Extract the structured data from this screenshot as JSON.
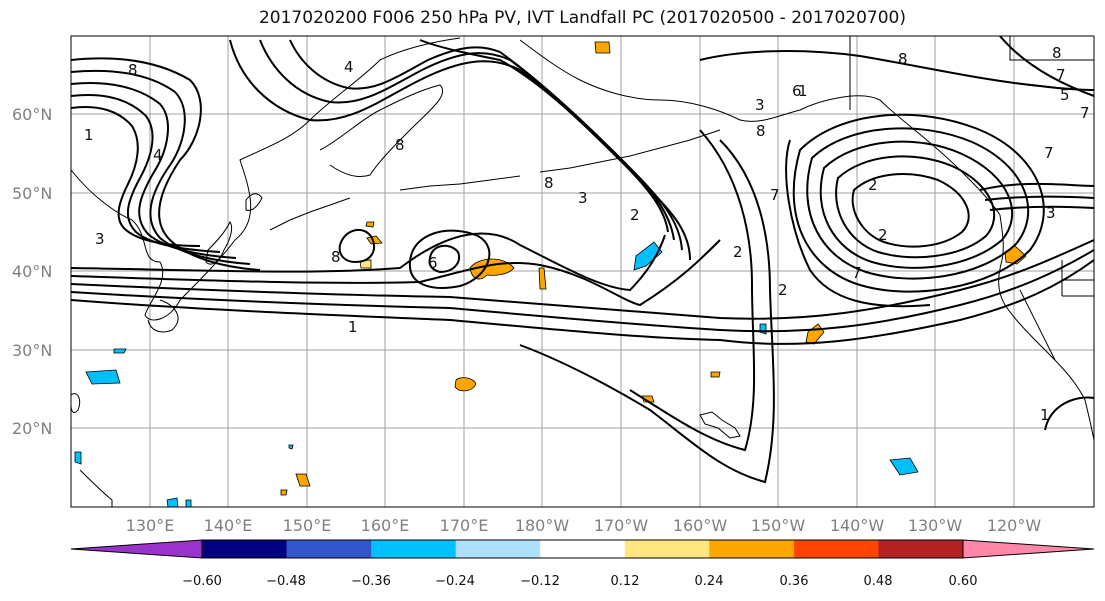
{
  "title": "2017020200 F006 250 hPa PV, IVT Landfall PC (2017020500 - 2017020700)",
  "map": {
    "lat_labels": [
      "60°N",
      "50°N",
      "40°N",
      "30°N",
      "20°N"
    ],
    "lon_labels": [
      "130°E",
      "140°E",
      "150°E",
      "160°E",
      "170°E",
      "180°W",
      "170°W",
      "160°W",
      "150°W",
      "140°W",
      "130°W",
      "120°W"
    ],
    "contour_labels": [
      "8",
      "4",
      "1",
      "4",
      "3",
      "8",
      "8",
      "8",
      "3",
      "2",
      "6",
      "1",
      "2",
      "2",
      "7",
      "8",
      "6",
      "7",
      "7",
      "7",
      "1",
      "2",
      "1",
      "3",
      "7",
      "8",
      "5",
      "8",
      "2",
      "3"
    ]
  },
  "colorbar": {
    "ticks": [
      "−0.60",
      "−0.48",
      "−0.36",
      "−0.24",
      "−0.12",
      "0.12",
      "0.24",
      "0.36",
      "0.48",
      "0.60"
    ],
    "colors": [
      "#9933cc",
      "#000080",
      "#3355cc",
      "#00bfff",
      "#b0e0ff",
      "#ffffff",
      "#ffe680",
      "#ffa500",
      "#ff4500",
      "#b22222",
      "#ff88aa"
    ]
  },
  "chart_data": {
    "type": "heatmap",
    "title": "2017020200 F006 250 hPa PV, IVT Landfall PC (2017020500 - 2017020700)",
    "x_axis": [
      "130°E",
      "140°E",
      "150°E",
      "160°E",
      "170°E",
      "180°W",
      "170°W",
      "160°W",
      "150°W",
      "140°W",
      "130°W",
      "120°W"
    ],
    "y_axis": [
      "60°N",
      "50°N",
      "40°N",
      "30°N",
      "20°N"
    ],
    "contour_levels": [
      1,
      2,
      3,
      4,
      5,
      6,
      7,
      8
    ],
    "colorbar_levels": [
      -0.6,
      -0.48,
      -0.36,
      -0.24,
      -0.12,
      0.12,
      0.24,
      0.36,
      0.48,
      0.6
    ],
    "colorbar_extend": "both",
    "grid": true
  }
}
